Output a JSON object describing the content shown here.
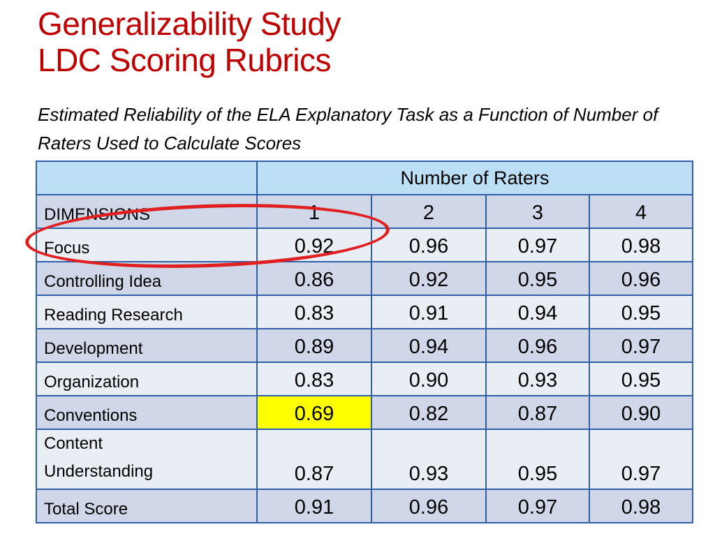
{
  "title_line1": "Generalizability Study",
  "title_line2": "LDC Scoring Rubrics",
  "subtitle": "Estimated Reliability of the ELA Explanatory Task as a Function of Number of Raters Used to Calculate Scores",
  "table": {
    "group_header": "Number of Raters",
    "row_header": "DIMENSIONS",
    "columns": [
      "1",
      "2",
      "3",
      "4"
    ],
    "rows": [
      {
        "label": "Focus",
        "values": [
          "0.92",
          "0.96",
          "0.97",
          "0.98"
        ]
      },
      {
        "label": "Controlling Idea",
        "values": [
          "0.86",
          "0.92",
          "0.95",
          "0.96"
        ]
      },
      {
        "label": "Reading Research",
        "values": [
          "0.83",
          "0.91",
          "0.94",
          "0.95"
        ]
      },
      {
        "label": "Development",
        "values": [
          "0.89",
          "0.94",
          "0.96",
          "0.97"
        ]
      },
      {
        "label": "Organization",
        "values": [
          "0.83",
          "0.90",
          "0.93",
          "0.95"
        ]
      },
      {
        "label": "Conventions",
        "values": [
          "0.69",
          "0.82",
          "0.87",
          "0.90"
        ]
      },
      {
        "label_line1": "Content",
        "label_line2": "Understanding",
        "values": [
          "0.87",
          "0.93",
          "0.95",
          "0.97"
        ]
      },
      {
        "label": "Total Score",
        "values": [
          "0.91",
          "0.96",
          "0.97",
          "0.98"
        ]
      }
    ]
  },
  "colors": {
    "title": "#c00000",
    "border": "#2e5fa8",
    "highlight": "#ffff00",
    "circle": "#e02020"
  }
}
